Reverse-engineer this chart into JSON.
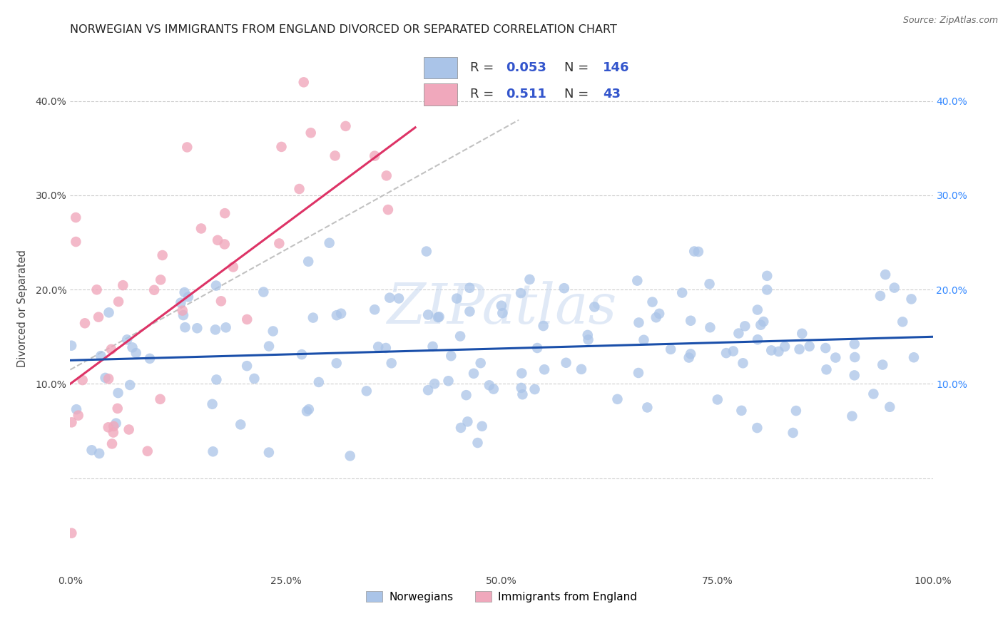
{
  "title": "NORWEGIAN VS IMMIGRANTS FROM ENGLAND DIVORCED OR SEPARATED CORRELATION CHART",
  "source": "Source: ZipAtlas.com",
  "ylabel": "Divorced or Separated",
  "watermark": "ZIPatlas",
  "norwegian_R": 0.053,
  "norwegian_N": 146,
  "england_R": 0.511,
  "england_N": 43,
  "norwegian_color": "#aac4e8",
  "england_color": "#f0a8bc",
  "norwegian_line_color": "#1a4faa",
  "england_line_color": "#dd3366",
  "background_color": "#ffffff",
  "grid_color": "#c8c8c8",
  "xlim": [
    0.0,
    1.0
  ],
  "ylim": [
    -0.1,
    0.46
  ],
  "xticks": [
    0.0,
    0.25,
    0.5,
    0.75,
    1.0
  ],
  "xtick_labels": [
    "0.0%",
    "25.0%",
    "50.0%",
    "75.0%",
    "100.0%"
  ],
  "yticks": [
    0.0,
    0.1,
    0.2,
    0.3,
    0.4
  ],
  "ytick_labels_left": [
    "",
    "10.0%",
    "20.0%",
    "30.0%",
    "40.0%"
  ],
  "ytick_labels_right": [
    "",
    "10.0%",
    "20.0%",
    "30.0%",
    "40.0%"
  ],
  "legend_label_1": "Norwegians",
  "legend_label_2": "Immigrants from England",
  "title_fontsize": 11.5,
  "tick_fontsize": 10,
  "right_tick_color": "#3388ff"
}
